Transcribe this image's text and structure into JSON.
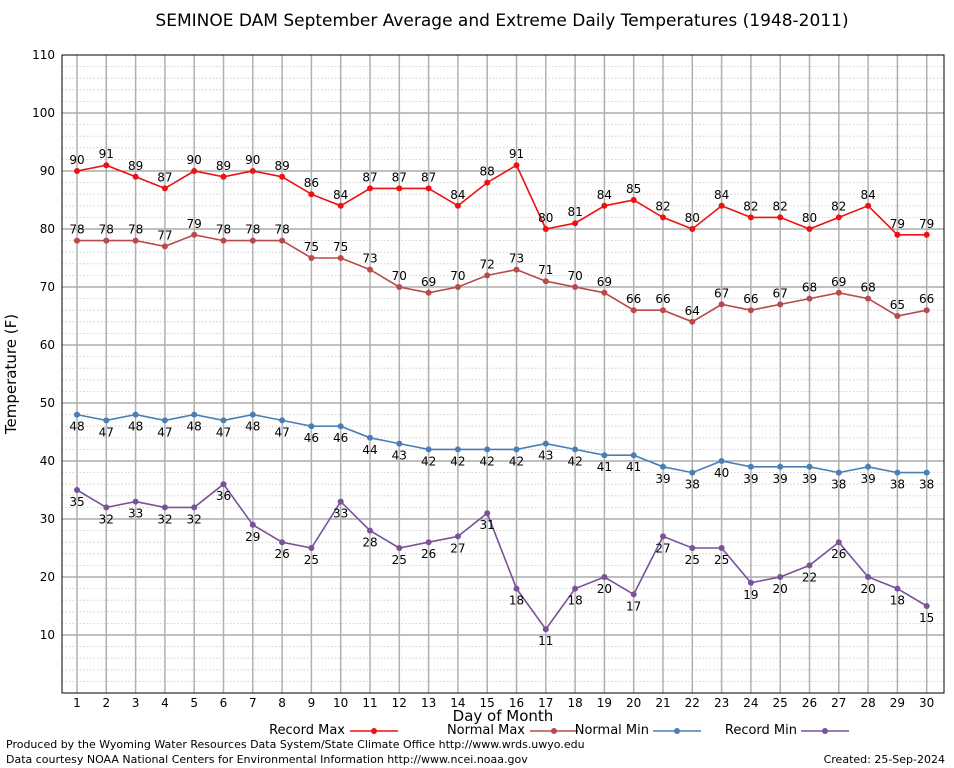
{
  "chart_data": {
    "type": "line",
    "title": "SEMINOE DAM September Average and Extreme Daily Temperatures (1948-2011)",
    "xlabel": "Day of Month",
    "ylabel": "Temperature (F)",
    "ylim": [
      0,
      110
    ],
    "yticks": [
      10,
      20,
      30,
      40,
      50,
      60,
      70,
      80,
      90,
      100,
      110
    ],
    "x": [
      1,
      2,
      3,
      4,
      5,
      6,
      7,
      8,
      9,
      10,
      11,
      12,
      13,
      14,
      15,
      16,
      17,
      18,
      19,
      20,
      21,
      22,
      23,
      24,
      25,
      26,
      27,
      28,
      29,
      30
    ],
    "grid": true,
    "legend_position": "bottom",
    "series": [
      {
        "name": "Record Max",
        "color": "#ee1111",
        "values": [
          90,
          91,
          89,
          87,
          90,
          89,
          90,
          89,
          86,
          84,
          87,
          87,
          87,
          84,
          88,
          91,
          80,
          81,
          84,
          85,
          82,
          80,
          84,
          82,
          82,
          80,
          82,
          84,
          79,
          79
        ]
      },
      {
        "name": "Normal Max",
        "color": "#b84a4a",
        "values": [
          78,
          78,
          78,
          77,
          79,
          78,
          78,
          78,
          75,
          75,
          73,
          70,
          69,
          70,
          72,
          73,
          71,
          70,
          69,
          66,
          66,
          64,
          67,
          66,
          67,
          68,
          69,
          68,
          65,
          66
        ]
      },
      {
        "name": "Normal Min",
        "color": "#4a7fb5",
        "values": [
          48,
          47,
          48,
          47,
          48,
          47,
          48,
          47,
          46,
          46,
          44,
          43,
          42,
          42,
          42,
          42,
          43,
          42,
          41,
          41,
          39,
          38,
          40,
          39,
          39,
          39,
          38,
          39,
          38,
          38
        ]
      },
      {
        "name": "Record Min",
        "color": "#7a5299",
        "values": [
          35,
          32,
          33,
          32,
          32,
          36,
          29,
          26,
          25,
          33,
          28,
          25,
          26,
          27,
          31,
          18,
          11,
          18,
          20,
          17,
          27,
          25,
          25,
          19,
          20,
          22,
          26,
          20,
          18,
          15
        ]
      }
    ]
  },
  "footer": {
    "produced_by": "Produced by the Wyoming Water Resources Data System/State Climate Office http://www.wrds.uwyo.edu",
    "data_courtesy": "Data courtesy NOAA National Centers for Environmental Information http://www.ncei.noaa.gov",
    "created": "Created:  25-Sep-2024"
  }
}
